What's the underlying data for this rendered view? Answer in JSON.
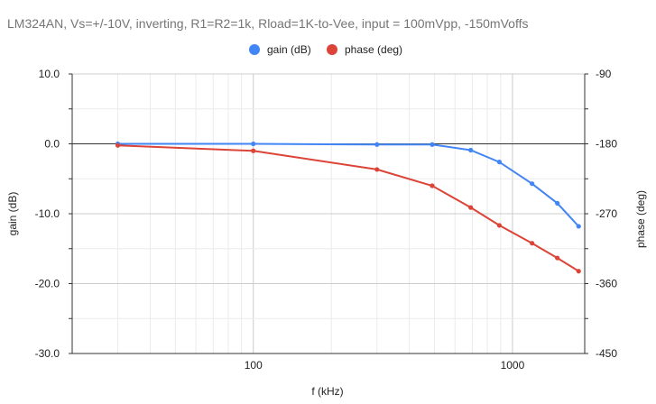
{
  "chart_data": {
    "type": "line",
    "title": "LM324AN, Vs=+/-10V, inverting, R1=R2=1k, Rload=1K-to-Vee, input = 100mVpp, -150mVoffs",
    "xlabel": "f (kHz)",
    "ylabel": "gain (dB)",
    "y2label": "phase (deg)",
    "x_scale": "log",
    "xlim": [
      20,
      1900
    ],
    "ylim": [
      -30,
      10
    ],
    "y2lim": [
      -450,
      -90
    ],
    "x_ticks": [
      100,
      1000
    ],
    "x_tick_labels": [
      "100",
      "1000"
    ],
    "y_ticks": [
      10,
      0,
      -10,
      -20,
      -30
    ],
    "y_tick_labels": [
      "10.0",
      "0.0",
      "-10.0",
      "-20.0",
      "-30.0"
    ],
    "y2_ticks": [
      -90,
      -180,
      -270,
      -360,
      -450
    ],
    "y2_tick_labels": [
      "-90",
      "-180",
      "-270",
      "-360",
      "-450"
    ],
    "grid": true,
    "legend_position": "top-center",
    "x": [
      30,
      100,
      300,
      490,
      690,
      890,
      1190,
      1490,
      1800
    ],
    "series": [
      {
        "name": "gain (dB)",
        "axis": "left",
        "color": "#4285f4",
        "values": [
          0.0,
          0.0,
          -0.1,
          -0.1,
          -0.9,
          -2.6,
          -5.7,
          -8.5,
          -11.8
        ]
      },
      {
        "name": "phase (deg)",
        "axis": "right",
        "color": "#db4437",
        "values": [
          -182,
          -189,
          -213,
          -234,
          -262,
          -285,
          -308,
          -327,
          -344
        ]
      }
    ]
  }
}
